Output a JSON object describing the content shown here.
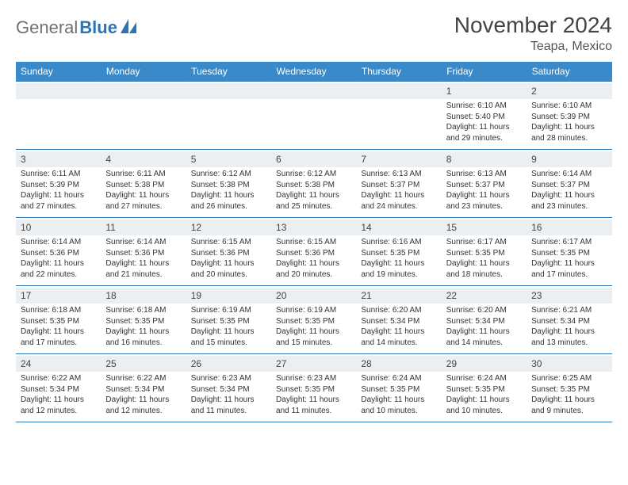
{
  "brand": {
    "part1": "General",
    "part2": "Blue"
  },
  "title": "November 2024",
  "location": "Teapa, Mexico",
  "colors": {
    "header_bg": "#3a8ac9",
    "header_text": "#ffffff",
    "border": "#2d74b5",
    "daynum_bg": "#eceff1",
    "page_bg": "#ffffff",
    "text": "#333333"
  },
  "weekdays": [
    "Sunday",
    "Monday",
    "Tuesday",
    "Wednesday",
    "Thursday",
    "Friday",
    "Saturday"
  ],
  "weeks": [
    [
      {
        "n": "",
        "sr": "",
        "ss": "",
        "dl": ""
      },
      {
        "n": "",
        "sr": "",
        "ss": "",
        "dl": ""
      },
      {
        "n": "",
        "sr": "",
        "ss": "",
        "dl": ""
      },
      {
        "n": "",
        "sr": "",
        "ss": "",
        "dl": ""
      },
      {
        "n": "",
        "sr": "",
        "ss": "",
        "dl": ""
      },
      {
        "n": "1",
        "sr": "Sunrise: 6:10 AM",
        "ss": "Sunset: 5:40 PM",
        "dl": "Daylight: 11 hours and 29 minutes."
      },
      {
        "n": "2",
        "sr": "Sunrise: 6:10 AM",
        "ss": "Sunset: 5:39 PM",
        "dl": "Daylight: 11 hours and 28 minutes."
      }
    ],
    [
      {
        "n": "3",
        "sr": "Sunrise: 6:11 AM",
        "ss": "Sunset: 5:39 PM",
        "dl": "Daylight: 11 hours and 27 minutes."
      },
      {
        "n": "4",
        "sr": "Sunrise: 6:11 AM",
        "ss": "Sunset: 5:38 PM",
        "dl": "Daylight: 11 hours and 27 minutes."
      },
      {
        "n": "5",
        "sr": "Sunrise: 6:12 AM",
        "ss": "Sunset: 5:38 PM",
        "dl": "Daylight: 11 hours and 26 minutes."
      },
      {
        "n": "6",
        "sr": "Sunrise: 6:12 AM",
        "ss": "Sunset: 5:38 PM",
        "dl": "Daylight: 11 hours and 25 minutes."
      },
      {
        "n": "7",
        "sr": "Sunrise: 6:13 AM",
        "ss": "Sunset: 5:37 PM",
        "dl": "Daylight: 11 hours and 24 minutes."
      },
      {
        "n": "8",
        "sr": "Sunrise: 6:13 AM",
        "ss": "Sunset: 5:37 PM",
        "dl": "Daylight: 11 hours and 23 minutes."
      },
      {
        "n": "9",
        "sr": "Sunrise: 6:14 AM",
        "ss": "Sunset: 5:37 PM",
        "dl": "Daylight: 11 hours and 23 minutes."
      }
    ],
    [
      {
        "n": "10",
        "sr": "Sunrise: 6:14 AM",
        "ss": "Sunset: 5:36 PM",
        "dl": "Daylight: 11 hours and 22 minutes."
      },
      {
        "n": "11",
        "sr": "Sunrise: 6:14 AM",
        "ss": "Sunset: 5:36 PM",
        "dl": "Daylight: 11 hours and 21 minutes."
      },
      {
        "n": "12",
        "sr": "Sunrise: 6:15 AM",
        "ss": "Sunset: 5:36 PM",
        "dl": "Daylight: 11 hours and 20 minutes."
      },
      {
        "n": "13",
        "sr": "Sunrise: 6:15 AM",
        "ss": "Sunset: 5:36 PM",
        "dl": "Daylight: 11 hours and 20 minutes."
      },
      {
        "n": "14",
        "sr": "Sunrise: 6:16 AM",
        "ss": "Sunset: 5:35 PM",
        "dl": "Daylight: 11 hours and 19 minutes."
      },
      {
        "n": "15",
        "sr": "Sunrise: 6:17 AM",
        "ss": "Sunset: 5:35 PM",
        "dl": "Daylight: 11 hours and 18 minutes."
      },
      {
        "n": "16",
        "sr": "Sunrise: 6:17 AM",
        "ss": "Sunset: 5:35 PM",
        "dl": "Daylight: 11 hours and 17 minutes."
      }
    ],
    [
      {
        "n": "17",
        "sr": "Sunrise: 6:18 AM",
        "ss": "Sunset: 5:35 PM",
        "dl": "Daylight: 11 hours and 17 minutes."
      },
      {
        "n": "18",
        "sr": "Sunrise: 6:18 AM",
        "ss": "Sunset: 5:35 PM",
        "dl": "Daylight: 11 hours and 16 minutes."
      },
      {
        "n": "19",
        "sr": "Sunrise: 6:19 AM",
        "ss": "Sunset: 5:35 PM",
        "dl": "Daylight: 11 hours and 15 minutes."
      },
      {
        "n": "20",
        "sr": "Sunrise: 6:19 AM",
        "ss": "Sunset: 5:35 PM",
        "dl": "Daylight: 11 hours and 15 minutes."
      },
      {
        "n": "21",
        "sr": "Sunrise: 6:20 AM",
        "ss": "Sunset: 5:34 PM",
        "dl": "Daylight: 11 hours and 14 minutes."
      },
      {
        "n": "22",
        "sr": "Sunrise: 6:20 AM",
        "ss": "Sunset: 5:34 PM",
        "dl": "Daylight: 11 hours and 14 minutes."
      },
      {
        "n": "23",
        "sr": "Sunrise: 6:21 AM",
        "ss": "Sunset: 5:34 PM",
        "dl": "Daylight: 11 hours and 13 minutes."
      }
    ],
    [
      {
        "n": "24",
        "sr": "Sunrise: 6:22 AM",
        "ss": "Sunset: 5:34 PM",
        "dl": "Daylight: 11 hours and 12 minutes."
      },
      {
        "n": "25",
        "sr": "Sunrise: 6:22 AM",
        "ss": "Sunset: 5:34 PM",
        "dl": "Daylight: 11 hours and 12 minutes."
      },
      {
        "n": "26",
        "sr": "Sunrise: 6:23 AM",
        "ss": "Sunset: 5:34 PM",
        "dl": "Daylight: 11 hours and 11 minutes."
      },
      {
        "n": "27",
        "sr": "Sunrise: 6:23 AM",
        "ss": "Sunset: 5:35 PM",
        "dl": "Daylight: 11 hours and 11 minutes."
      },
      {
        "n": "28",
        "sr": "Sunrise: 6:24 AM",
        "ss": "Sunset: 5:35 PM",
        "dl": "Daylight: 11 hours and 10 minutes."
      },
      {
        "n": "29",
        "sr": "Sunrise: 6:24 AM",
        "ss": "Sunset: 5:35 PM",
        "dl": "Daylight: 11 hours and 10 minutes."
      },
      {
        "n": "30",
        "sr": "Sunrise: 6:25 AM",
        "ss": "Sunset: 5:35 PM",
        "dl": "Daylight: 11 hours and 9 minutes."
      }
    ]
  ]
}
